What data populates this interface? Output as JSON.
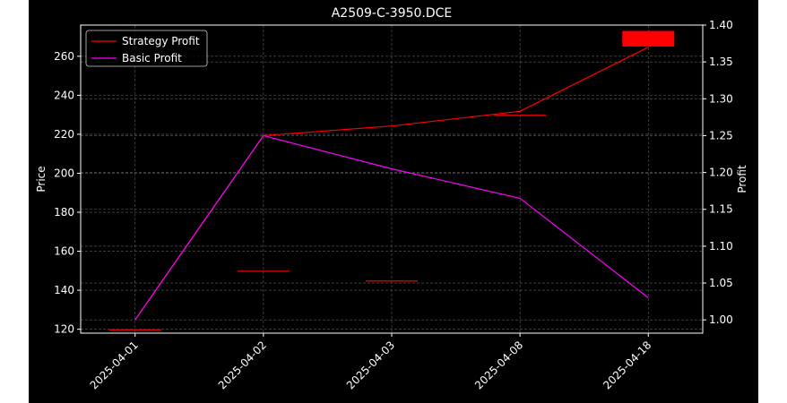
{
  "chart_data": {
    "type": "line",
    "title": "A2509-C-3950.DCE",
    "x": [
      "2025-04-01",
      "2025-04-02",
      "2025-04-03",
      "2025-04-08",
      "2025-04-18"
    ],
    "ylabel_left": "Price",
    "ylabel_right": "Profit",
    "ylim_left": [
      118,
      276
    ],
    "ylim_right": [
      0.982,
      1.4
    ],
    "yticks_left": [
      "120",
      "140",
      "160",
      "180",
      "200",
      "220",
      "240",
      "260"
    ],
    "yticks_right": [
      "1.00",
      "1.05",
      "1.10",
      "1.15",
      "1.20",
      "1.25",
      "1.30",
      "1.35",
      "1.40"
    ],
    "grid": true,
    "legend_position": "top-left",
    "candles": [
      {
        "date": "2025-04-01",
        "open": 120,
        "close": 120
      },
      {
        "date": "2025-04-02",
        "open": 150,
        "close": 150
      },
      {
        "date": "2025-04-03",
        "open": 145,
        "close": 145
      },
      {
        "date": "2025-04-08",
        "open": 230,
        "close": 230
      },
      {
        "date": "2025-04-18",
        "open": 265,
        "close": 273
      }
    ],
    "series": [
      {
        "name": "Strategy Profit",
        "axis": "right",
        "color": "#ff0000",
        "values": [
          1.0,
          1.25,
          1.263,
          1.283,
          1.37
        ]
      },
      {
        "name": "Basic Profit",
        "axis": "right",
        "color": "#ff00ff",
        "values": [
          1.0,
          1.25,
          1.205,
          1.165,
          1.03
        ]
      }
    ],
    "colors": {
      "background": "#000000",
      "candle": "#ff0000",
      "axis": "#ffffff",
      "grid": "#888888"
    }
  }
}
